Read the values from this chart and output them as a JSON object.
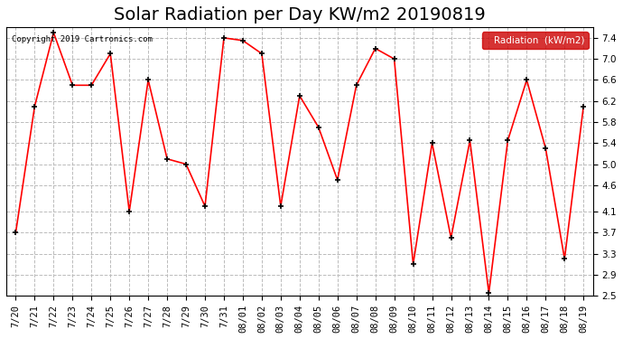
{
  "title": "Solar Radiation per Day KW/m2 20190819",
  "copyright": "Copyright 2019 Cartronics.com",
  "legend_label": "Radiation  (kW/m2)",
  "dates": [
    "7/20",
    "7/21",
    "7/22",
    "7/23",
    "7/24",
    "7/25",
    "7/26",
    "7/27",
    "7/28",
    "7/29",
    "7/30",
    "7/31",
    "08/01",
    "08/02",
    "08/03",
    "08/04",
    "08/05",
    "08/06",
    "08/07",
    "08/08",
    "08/09",
    "08/10",
    "08/11",
    "08/12",
    "08/13",
    "08/14",
    "08/15",
    "08/16",
    "08/17",
    "08/18",
    "08/19"
  ],
  "values": [
    3.7,
    6.1,
    7.5,
    6.5,
    6.5,
    7.1,
    4.1,
    6.6,
    5.1,
    5.0,
    4.2,
    7.4,
    7.35,
    7.1,
    4.2,
    6.3,
    5.7,
    4.7,
    6.5,
    7.2,
    7.0,
    3.1,
    5.4,
    3.6,
    5.45,
    2.55,
    5.45,
    6.6,
    5.3,
    3.2,
    6.1
  ],
  "line_color": "red",
  "marker_color": "black",
  "background_color": "#ffffff",
  "plot_bg_color": "#ffffff",
  "grid_color": "#bbbbbb",
  "ylim": [
    2.5,
    7.6
  ],
  "yticks": [
    2.5,
    2.9,
    3.3,
    3.7,
    4.1,
    4.6,
    5.0,
    5.4,
    5.8,
    6.2,
    6.6,
    7.0,
    7.4
  ],
  "title_fontsize": 14,
  "tick_fontsize": 7.5,
  "legend_bg": "#cc0000",
  "legend_text_color": "#ffffff"
}
